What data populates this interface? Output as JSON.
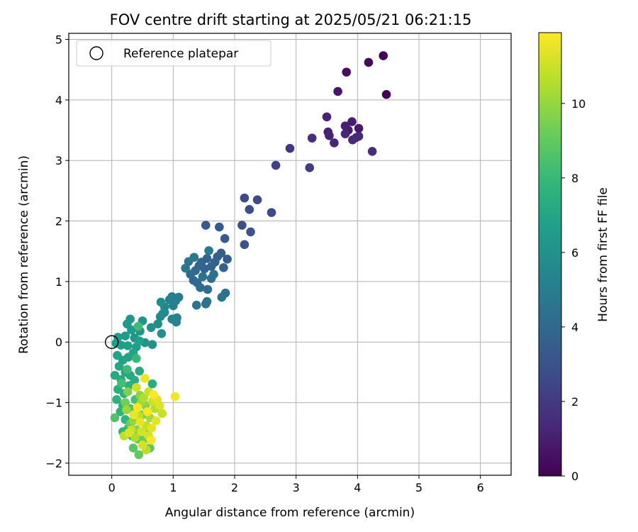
{
  "chart_data": {
    "type": "scatter",
    "title": "FOV centre drift starting at 2025/05/21 06:21:15",
    "xlabel": "Angular distance from reference (arcmin)",
    "ylabel": "Rotation from reference (arcmin)",
    "xlim": [
      -0.7,
      6.5
    ],
    "ylim": [
      -2.2,
      5.1
    ],
    "xticks": [
      0,
      1,
      2,
      3,
      4,
      5,
      6
    ],
    "yticks": [
      -2,
      -1,
      0,
      1,
      2,
      3,
      4,
      5
    ],
    "grid": true,
    "legend": {
      "position": "top-left",
      "label": "Reference platepar"
    },
    "reference_point": {
      "x": 0,
      "y": 0
    },
    "colorbar": {
      "label": "Hours from first FF file",
      "min": 0,
      "max": 11.9,
      "ticks": [
        0,
        2,
        4,
        6,
        8,
        10
      ],
      "colormap": "viridis"
    },
    "points": [
      {
        "x": 4.42,
        "y": 4.73,
        "h": 0.1
      },
      {
        "x": 4.47,
        "y": 4.09,
        "h": 0.15
      },
      {
        "x": 4.18,
        "y": 4.62,
        "h": 0.25
      },
      {
        "x": 3.82,
        "y": 4.46,
        "h": 0.5
      },
      {
        "x": 3.68,
        "y": 4.14,
        "h": 0.7
      },
      {
        "x": 4.02,
        "y": 3.53,
        "h": 0.8
      },
      {
        "x": 3.85,
        "y": 3.5,
        "h": 0.9
      },
      {
        "x": 3.91,
        "y": 3.64,
        "h": 1.0
      },
      {
        "x": 3.8,
        "y": 3.57,
        "h": 1.05
      },
      {
        "x": 3.52,
        "y": 3.47,
        "h": 1.1
      },
      {
        "x": 3.54,
        "y": 3.41,
        "h": 1.15
      },
      {
        "x": 3.5,
        "y": 3.72,
        "h": 1.2
      },
      {
        "x": 3.62,
        "y": 3.29,
        "h": 1.25
      },
      {
        "x": 3.8,
        "y": 3.44,
        "h": 1.3
      },
      {
        "x": 3.92,
        "y": 3.34,
        "h": 1.35
      },
      {
        "x": 4.02,
        "y": 3.4,
        "h": 1.4
      },
      {
        "x": 3.98,
        "y": 3.38,
        "h": 1.45
      },
      {
        "x": 4.24,
        "y": 3.15,
        "h": 1.5
      },
      {
        "x": 3.26,
        "y": 3.37,
        "h": 1.6
      },
      {
        "x": 2.9,
        "y": 3.2,
        "h": 1.9
      },
      {
        "x": 3.22,
        "y": 2.88,
        "h": 2.1
      },
      {
        "x": 2.67,
        "y": 2.92,
        "h": 2.3
      },
      {
        "x": 2.6,
        "y": 2.14,
        "h": 2.6
      },
      {
        "x": 2.16,
        "y": 2.38,
        "h": 2.7
      },
      {
        "x": 2.37,
        "y": 2.35,
        "h": 2.75
      },
      {
        "x": 2.24,
        "y": 2.19,
        "h": 2.8
      },
      {
        "x": 2.12,
        "y": 1.93,
        "h": 2.9
      },
      {
        "x": 2.26,
        "y": 1.82,
        "h": 3.0
      },
      {
        "x": 2.16,
        "y": 1.61,
        "h": 3.1
      },
      {
        "x": 1.53,
        "y": 1.93,
        "h": 3.3
      },
      {
        "x": 1.75,
        "y": 1.9,
        "h": 3.35
      },
      {
        "x": 1.84,
        "y": 1.71,
        "h": 3.4
      },
      {
        "x": 1.88,
        "y": 1.37,
        "h": 3.45
      },
      {
        "x": 1.78,
        "y": 1.47,
        "h": 3.5
      },
      {
        "x": 1.72,
        "y": 1.41,
        "h": 3.55
      },
      {
        "x": 1.68,
        "y": 1.32,
        "h": 3.6
      },
      {
        "x": 1.82,
        "y": 1.23,
        "h": 3.65
      },
      {
        "x": 1.62,
        "y": 1.25,
        "h": 3.7
      },
      {
        "x": 1.55,
        "y": 1.38,
        "h": 3.75
      },
      {
        "x": 1.51,
        "y": 1.21,
        "h": 3.8
      },
      {
        "x": 1.46,
        "y": 1.32,
        "h": 3.85
      },
      {
        "x": 1.42,
        "y": 1.26,
        "h": 3.9
      },
      {
        "x": 1.36,
        "y": 1.18,
        "h": 3.95
      },
      {
        "x": 1.33,
        "y": 1.02,
        "h": 4.0
      },
      {
        "x": 1.28,
        "y": 1.12,
        "h": 4.05
      },
      {
        "x": 1.39,
        "y": 0.98,
        "h": 4.1
      },
      {
        "x": 1.44,
        "y": 0.9,
        "h": 4.15
      },
      {
        "x": 1.56,
        "y": 0.87,
        "h": 4.2
      },
      {
        "x": 1.62,
        "y": 1.05,
        "h": 4.25
      },
      {
        "x": 1.66,
        "y": 1.12,
        "h": 4.3
      },
      {
        "x": 1.48,
        "y": 1.08,
        "h": 4.35
      },
      {
        "x": 1.85,
        "y": 0.81,
        "h": 4.4
      },
      {
        "x": 1.79,
        "y": 0.74,
        "h": 4.45
      },
      {
        "x": 1.55,
        "y": 0.67,
        "h": 4.5
      },
      {
        "x": 1.53,
        "y": 0.63,
        "h": 4.55
      },
      {
        "x": 1.38,
        "y": 0.61,
        "h": 4.6
      },
      {
        "x": 1.25,
        "y": 1.33,
        "h": 4.7
      },
      {
        "x": 1.2,
        "y": 1.22,
        "h": 4.75
      },
      {
        "x": 1.34,
        "y": 1.4,
        "h": 4.8
      },
      {
        "x": 1.58,
        "y": 1.51,
        "h": 4.9
      },
      {
        "x": 1.09,
        "y": 0.74,
        "h": 5.0
      },
      {
        "x": 0.98,
        "y": 0.75,
        "h": 5.1
      },
      {
        "x": 1.04,
        "y": 0.68,
        "h": 5.15
      },
      {
        "x": 1.0,
        "y": 0.6,
        "h": 5.2
      },
      {
        "x": 0.94,
        "y": 0.7,
        "h": 5.25
      },
      {
        "x": 1.06,
        "y": 0.4,
        "h": 5.3
      },
      {
        "x": 1.05,
        "y": 0.33,
        "h": 5.35
      },
      {
        "x": 0.98,
        "y": 0.38,
        "h": 5.4
      },
      {
        "x": 0.86,
        "y": 0.58,
        "h": 5.5
      },
      {
        "x": 0.83,
        "y": 0.47,
        "h": 5.55
      },
      {
        "x": 0.79,
        "y": 0.42,
        "h": 5.6
      },
      {
        "x": 0.86,
        "y": 0.49,
        "h": 5.65
      },
      {
        "x": 0.8,
        "y": 0.66,
        "h": 5.7
      },
      {
        "x": 0.75,
        "y": 0.3,
        "h": 5.8
      },
      {
        "x": 0.81,
        "y": 0.14,
        "h": 5.85
      },
      {
        "x": 0.64,
        "y": 0.24,
        "h": 5.9
      },
      {
        "x": 0.66,
        "y": -0.04,
        "h": 6.0
      },
      {
        "x": 0.54,
        "y": -0.01,
        "h": 6.05
      },
      {
        "x": 0.5,
        "y": 0.35,
        "h": 6.1
      },
      {
        "x": 0.46,
        "y": 0.18,
        "h": 6.15
      },
      {
        "x": 0.37,
        "y": 0.07,
        "h": 6.2
      },
      {
        "x": 0.3,
        "y": 0.38,
        "h": 6.3
      },
      {
        "x": 0.25,
        "y": 0.3,
        "h": 6.35
      },
      {
        "x": 0.32,
        "y": 0.2,
        "h": 6.4
      },
      {
        "x": 0.22,
        "y": 0.1,
        "h": 6.45
      },
      {
        "x": 0.1,
        "y": 0.08,
        "h": 6.5
      },
      {
        "x": 0.07,
        "y": -0.02,
        "h": 6.55
      },
      {
        "x": 0.15,
        "y": -0.05,
        "h": 6.6
      },
      {
        "x": 0.26,
        "y": -0.06,
        "h": 6.65
      },
      {
        "x": 0.4,
        "y": -0.08,
        "h": 6.7
      },
      {
        "x": 0.45,
        "y": 0.02,
        "h": 6.75
      },
      {
        "x": 0.09,
        "y": -0.22,
        "h": 6.8
      },
      {
        "x": 0.18,
        "y": -0.3,
        "h": 6.85
      },
      {
        "x": 0.27,
        "y": -0.25,
        "h": 6.9
      },
      {
        "x": 0.35,
        "y": -0.18,
        "h": 6.95
      },
      {
        "x": 0.12,
        "y": -0.4,
        "h": 7.0
      },
      {
        "x": 0.22,
        "y": -0.5,
        "h": 7.05
      },
      {
        "x": 0.3,
        "y": -0.55,
        "h": 7.1
      },
      {
        "x": 0.45,
        "y": -0.48,
        "h": 7.15
      },
      {
        "x": 0.05,
        "y": -0.55,
        "h": 7.2
      },
      {
        "x": 0.15,
        "y": -0.62,
        "h": 7.25
      },
      {
        "x": 0.37,
        "y": -0.63,
        "h": 7.3
      },
      {
        "x": 0.66,
        "y": -0.69,
        "h": 7.35
      },
      {
        "x": 0.1,
        "y": -0.78,
        "h": 7.4
      },
      {
        "x": 0.2,
        "y": -0.85,
        "h": 7.45
      },
      {
        "x": 0.28,
        "y": -0.72,
        "h": 7.5
      },
      {
        "x": 0.08,
        "y": -0.95,
        "h": 7.55
      },
      {
        "x": 0.18,
        "y": -1.05,
        "h": 7.6
      },
      {
        "x": 0.14,
        "y": -1.15,
        "h": 7.65
      },
      {
        "x": 0.22,
        "y": -1.28,
        "h": 7.7
      },
      {
        "x": 0.27,
        "y": -1.42,
        "h": 7.75
      },
      {
        "x": 0.18,
        "y": -1.48,
        "h": 7.8
      },
      {
        "x": 0.33,
        "y": -1.55,
        "h": 7.85
      },
      {
        "x": 0.4,
        "y": -0.27,
        "h": 8.0
      },
      {
        "x": 0.25,
        "y": -0.45,
        "h": 8.1
      },
      {
        "x": 0.43,
        "y": 0.26,
        "h": 8.2
      },
      {
        "x": 0.16,
        "y": -0.68,
        "h": 8.3
      },
      {
        "x": 0.38,
        "y": -0.95,
        "h": 8.4
      },
      {
        "x": 0.3,
        "y": -1.1,
        "h": 8.5
      },
      {
        "x": 0.05,
        "y": -1.25,
        "h": 8.6
      },
      {
        "x": 0.42,
        "y": -1.6,
        "h": 8.7
      },
      {
        "x": 0.35,
        "y": -1.75,
        "h": 8.8
      },
      {
        "x": 0.62,
        "y": -1.75,
        "h": 8.9
      },
      {
        "x": 0.44,
        "y": -1.86,
        "h": 9.0
      },
      {
        "x": 0.52,
        "y": -1.62,
        "h": 9.1
      },
      {
        "x": 0.3,
        "y": -1.35,
        "h": 9.2
      },
      {
        "x": 0.22,
        "y": -1.0,
        "h": 9.3
      },
      {
        "x": 0.5,
        "y": -1.2,
        "h": 9.4
      },
      {
        "x": 0.4,
        "y": -1.45,
        "h": 9.5
      },
      {
        "x": 0.26,
        "y": -0.82,
        "h": 9.6
      },
      {
        "x": 0.55,
        "y": -1.05,
        "h": 9.7
      },
      {
        "x": 0.46,
        "y": -0.88,
        "h": 9.8
      },
      {
        "x": 0.35,
        "y": -1.3,
        "h": 9.9
      },
      {
        "x": 0.58,
        "y": -1.48,
        "h": 10.0
      },
      {
        "x": 0.24,
        "y": -1.12,
        "h": 10.1
      },
      {
        "x": 0.48,
        "y": -1.0,
        "h": 10.2
      },
      {
        "x": 0.62,
        "y": -1.25,
        "h": 10.3
      },
      {
        "x": 0.38,
        "y": -1.58,
        "h": 10.4
      },
      {
        "x": 0.52,
        "y": -0.92,
        "h": 10.5
      },
      {
        "x": 0.7,
        "y": -1.1,
        "h": 10.6
      },
      {
        "x": 0.44,
        "y": -1.22,
        "h": 10.7
      },
      {
        "x": 0.56,
        "y": -1.38,
        "h": 10.8
      },
      {
        "x": 0.32,
        "y": -1.45,
        "h": 10.9
      },
      {
        "x": 0.66,
        "y": -0.98,
        "h": 11.0
      },
      {
        "x": 0.6,
        "y": -1.55,
        "h": 11.1
      },
      {
        "x": 0.5,
        "y": -1.7,
        "h": 11.2
      },
      {
        "x": 0.78,
        "y": -1.05,
        "h": 11.3
      },
      {
        "x": 0.72,
        "y": -1.3,
        "h": 11.4
      },
      {
        "x": 0.46,
        "y": -1.32,
        "h": 11.5
      },
      {
        "x": 0.54,
        "y": -0.6,
        "h": 11.6
      },
      {
        "x": 1.03,
        "y": -0.9,
        "h": 11.7
      },
      {
        "x": 0.64,
        "y": -1.62,
        "h": 11.75
      },
      {
        "x": 0.58,
        "y": -1.15,
        "h": 11.8
      },
      {
        "x": 0.68,
        "y": -0.87,
        "h": 11.85
      },
      {
        "x": 0.42,
        "y": -1.08,
        "h": 11.9
      },
      {
        "x": 0.36,
        "y": -1.2,
        "h": 11.55
      },
      {
        "x": 0.65,
        "y": -1.42,
        "h": 11.45
      },
      {
        "x": 0.74,
        "y": -0.95,
        "h": 11.35
      },
      {
        "x": 0.28,
        "y": -1.5,
        "h": 11.25
      },
      {
        "x": 0.48,
        "y": -1.48,
        "h": 11.15
      },
      {
        "x": 0.4,
        "y": -0.75,
        "h": 11.05
      },
      {
        "x": 0.6,
        "y": -0.82,
        "h": 10.95
      },
      {
        "x": 0.82,
        "y": -1.18,
        "h": 10.85
      },
      {
        "x": 0.2,
        "y": -1.55,
        "h": 10.75
      },
      {
        "x": 0.56,
        "y": -1.78,
        "h": 10.65
      }
    ]
  }
}
